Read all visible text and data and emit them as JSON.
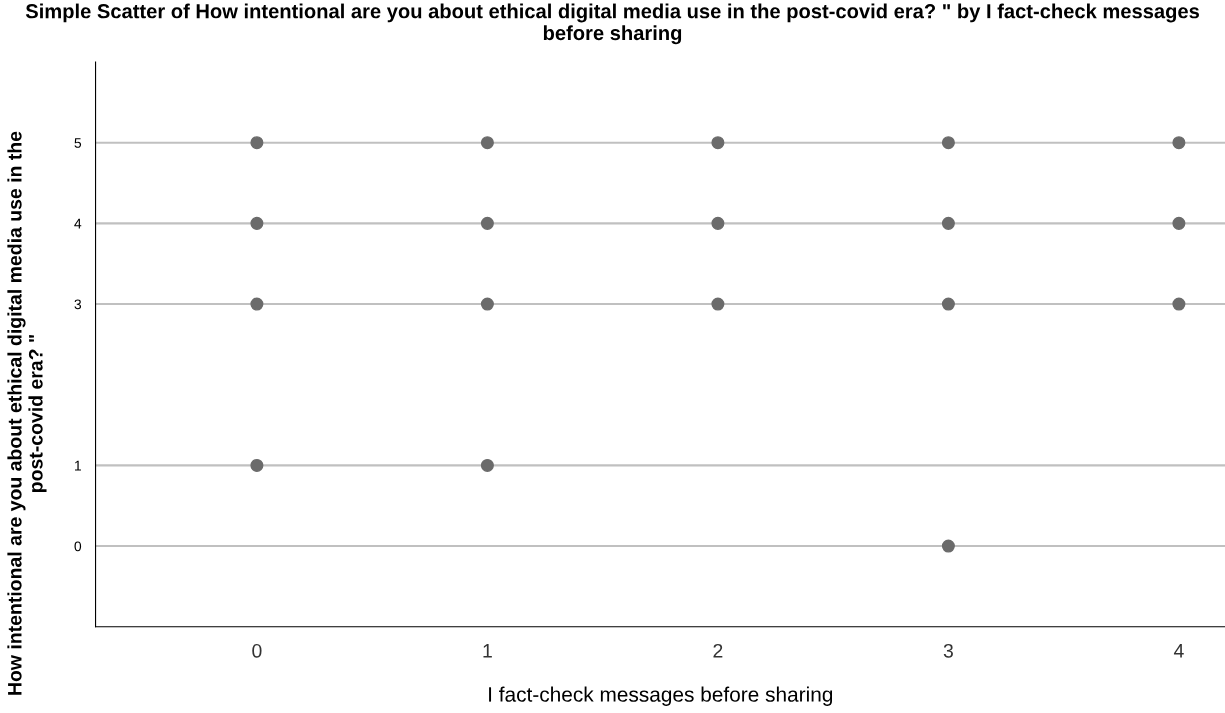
{
  "chart_data": {
    "type": "scatter",
    "title": "Simple Scatter of How intentional are you about ethical digital media use in the post-covid era? \" by I fact-check messages before sharing",
    "xlabel": "I fact-check messages before sharing",
    "ylabel": "How intentional are you about ethical digital media use in the post-covid era? \"",
    "series": [
      {
        "color": "#6b6b6b",
        "x": [
          0,
          0,
          0,
          0,
          1,
          1,
          1,
          1,
          2,
          2,
          2,
          3,
          3,
          3,
          3,
          4,
          4,
          4
        ],
        "values": [
          5,
          4,
          3,
          1,
          5,
          4,
          3,
          1,
          5,
          4,
          3,
          5,
          4,
          3,
          0,
          5,
          4,
          3
        ]
      }
    ],
    "xlim": [
      -0.7,
      4.2
    ],
    "xticks": [
      0,
      1,
      2,
      3,
      4
    ],
    "ylim": [
      -1,
      6
    ],
    "yticks": [
      0,
      1,
      3,
      4,
      5
    ],
    "grid": "y",
    "marker": "circle",
    "legend": false
  }
}
